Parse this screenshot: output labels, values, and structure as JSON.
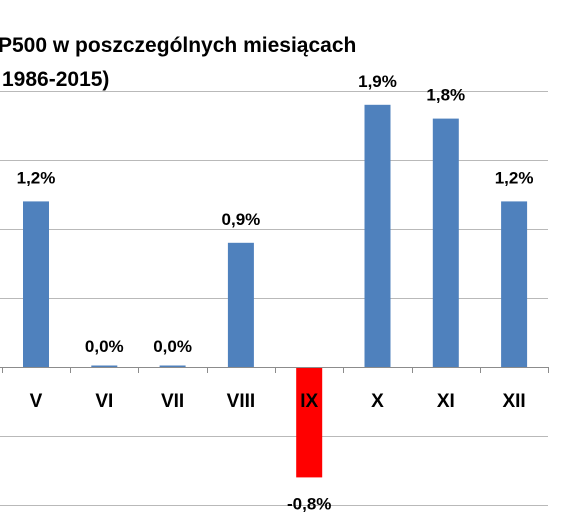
{
  "chart_data": {
    "type": "bar",
    "title": "P500 w poszczególnych miesiącach",
    "subtitle": "1986-2015)",
    "categories": [
      "V",
      "VI",
      "VII",
      "VIII",
      "IX",
      "X",
      "XI",
      "XII"
    ],
    "values": [
      1.2,
      0.0,
      0.0,
      0.9,
      -0.8,
      1.9,
      1.8,
      1.2
    ],
    "data_labels": [
      "1,2%",
      "0,0%",
      "0,0%",
      "0,9%",
      "-0,8%",
      "1,9%",
      "1,8%",
      "1,2%"
    ],
    "ylim": [
      -1.0,
      2.0
    ],
    "y_gridline_step": 0.5,
    "grid": true,
    "legend": "none",
    "bar_color": "#4f81bd",
    "highlight_color": "#ff0000",
    "highlight_category": "IX",
    "xlabel": "",
    "ylabel": ""
  }
}
